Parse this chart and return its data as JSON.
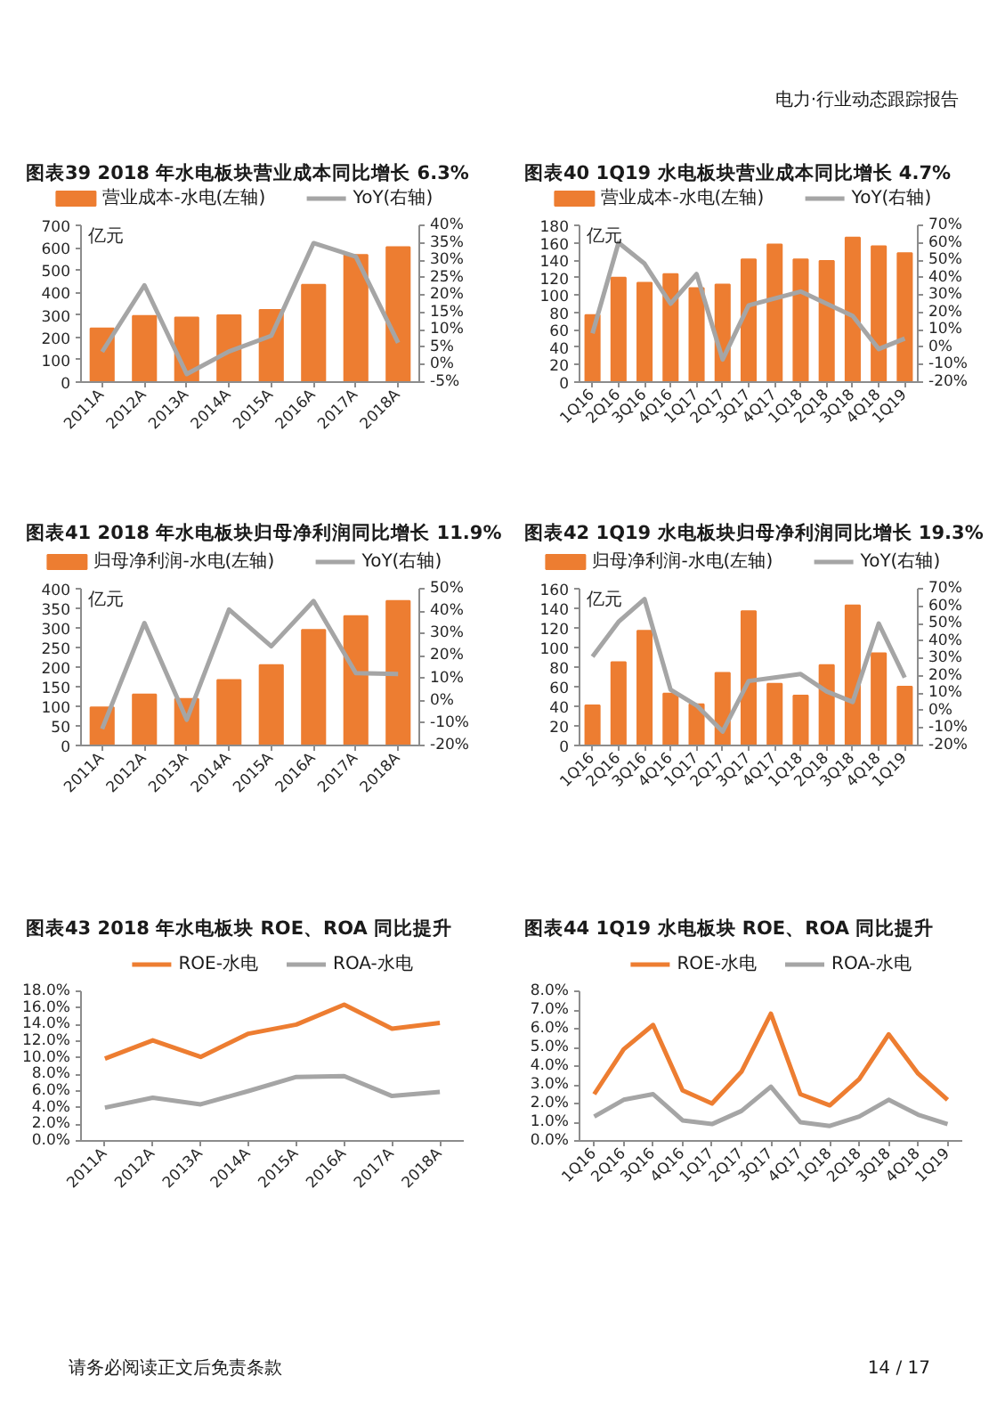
{
  "chart_data": [
    {
      "type": "bar",
      "title": "图表39 2018 年水电板块营业成本同比增长 6.3%",
      "ylabel": "亿元",
      "annotations": [
        "电力·行业动态跟踪报告"
      ],
      "categories": [
        "2011A",
        "2012A",
        "2013A",
        "2014A",
        "2015A",
        "2016A",
        "2017A",
        "2018A"
      ],
      "series": [
        {
          "name": "营业成本-水电(左轴)",
          "color": "#ed7d31",
          "values": [
            240,
            295,
            288,
            298,
            322,
            435,
            568,
            603
          ]
        },
        {
          "name": "YoY(右轴)",
          "type": "line",
          "axis": "y2",
          "color": "#a5a5a5",
          "values": [
            3.7,
            22.8,
            -2.7,
            3.8,
            8.3,
            34.9,
            31.0,
            6.3
          ]
        }
      ],
      "ylim": [
        0,
        700
      ],
      "yticks": [
        0,
        100,
        200,
        300,
        400,
        500,
        600,
        700
      ],
      "y2lim": [
        -5,
        40
      ],
      "y2ticks": [
        {
          "value": -5,
          "label": "-5%"
        },
        {
          "value": 0,
          "label": "0%"
        },
        {
          "value": 5,
          "label": "5%"
        },
        {
          "value": 10,
          "label": "10%"
        },
        {
          "value": 15,
          "label": "15%"
        },
        {
          "value": 20,
          "label": "20%"
        },
        {
          "value": 25,
          "label": "25%"
        },
        {
          "value": 30,
          "label": "30%"
        },
        {
          "value": 35,
          "label": "35%"
        },
        {
          "value": 40,
          "label": "40%"
        }
      ],
      "legend": "top",
      "grid": false
    },
    {
      "type": "bar",
      "title": "图表40 1Q19 水电板块营业成本同比增长 4.7%",
      "ylabel": "亿元",
      "categories": [
        "1Q16",
        "2Q16",
        "3Q16",
        "4Q16",
        "1Q17",
        "2Q17",
        "3Q17",
        "4Q17",
        "1Q18",
        "2Q18",
        "3Q18",
        "4Q18",
        "1Q19"
      ],
      "series": [
        {
          "name": "营业成本-水电(左轴)",
          "color": "#ed7d31",
          "values": [
            77,
            120,
            114,
            124,
            108,
            112,
            141,
            158,
            141,
            139,
            166,
            156,
            148
          ]
        },
        {
          "name": "YoY(右轴)",
          "type": "line",
          "axis": "y2",
          "color": "#a5a5a5",
          "values": [
            8,
            60,
            48,
            25,
            42,
            -7,
            24,
            28,
            32,
            25,
            18,
            -1,
            5
          ]
        }
      ],
      "ylim": [
        0,
        180
      ],
      "yticks": [
        0,
        20,
        40,
        60,
        80,
        100,
        120,
        140,
        160,
        180
      ],
      "y2lim": [
        -20,
        70
      ],
      "y2ticks": [
        {
          "value": -20,
          "label": "-20%"
        },
        {
          "value": -10,
          "label": "-10%"
        },
        {
          "value": 0,
          "label": "0%"
        },
        {
          "value": 10,
          "label": "10%"
        },
        {
          "value": 20,
          "label": "20%"
        },
        {
          "value": 30,
          "label": "30%"
        },
        {
          "value": 40,
          "label": "40%"
        },
        {
          "value": 50,
          "label": "50%"
        },
        {
          "value": 60,
          "label": "60%"
        },
        {
          "value": 70,
          "label": "70%"
        }
      ],
      "legend": "top",
      "grid": false
    },
    {
      "type": "bar",
      "title": "图表41 2018 年水电板块归母净利润同比增长 11.9%",
      "ylabel": "亿元",
      "categories": [
        "2011A",
        "2012A",
        "2013A",
        "2014A",
        "2015A",
        "2016A",
        "2017A",
        "2018A"
      ],
      "series": [
        {
          "name": "归母净利润-水电(左轴)",
          "color": "#ed7d31",
          "values": [
            97,
            130,
            119,
            167,
            205,
            295,
            330,
            369
          ]
        },
        {
          "name": "YoY(右轴)",
          "type": "line",
          "axis": "y2",
          "color": "#a5a5a5",
          "values": [
            -12.6,
            34.7,
            -8.5,
            40.7,
            24.3,
            44.5,
            12.3,
            11.9
          ]
        }
      ],
      "ylim": [
        0,
        400
      ],
      "yticks": [
        0,
        50,
        100,
        150,
        200,
        250,
        300,
        350,
        400
      ],
      "y2lim": [
        -20,
        50
      ],
      "y2ticks": [
        {
          "value": -20,
          "label": "-20%"
        },
        {
          "value": -10,
          "label": "-10%"
        },
        {
          "value": 0,
          "label": "0%"
        },
        {
          "value": 10,
          "label": "10%"
        },
        {
          "value": 20,
          "label": "20%"
        },
        {
          "value": 30,
          "label": "30%"
        },
        {
          "value": 40,
          "label": "40%"
        },
        {
          "value": 50,
          "label": "50%"
        }
      ],
      "legend": "top",
      "grid": false
    },
    {
      "type": "bar",
      "title": "图表42 1Q19 水电板块归母净利润同比增长 19.3%",
      "ylabel": "亿元",
      "categories": [
        "1Q16",
        "2Q16",
        "3Q16",
        "4Q16",
        "1Q17",
        "2Q17",
        "3Q17",
        "4Q17",
        "1Q18",
        "2Q18",
        "3Q18",
        "4Q18",
        "1Q19"
      ],
      "series": [
        {
          "name": "归母净利润-水电(左轴)",
          "color": "#ed7d31",
          "values": [
            41,
            85,
            117,
            53,
            42,
            74,
            137,
            63,
            51,
            82,
            143,
            94,
            60
          ]
        },
        {
          "name": "YoY(右轴)",
          "type": "line",
          "axis": "y2",
          "color": "#a5a5a5",
          "values": [
            31,
            51,
            64,
            12,
            3,
            -12,
            17,
            19,
            21,
            11,
            5,
            50,
            19
          ]
        }
      ],
      "ylim": [
        0,
        160
      ],
      "yticks": [
        0,
        20,
        40,
        60,
        80,
        100,
        120,
        140,
        160
      ],
      "y2lim": [
        -20,
        70
      ],
      "y2ticks": [
        {
          "value": -20,
          "label": "-20%"
        },
        {
          "value": -10,
          "label": "-10%"
        },
        {
          "value": 0,
          "label": "0%"
        },
        {
          "value": 10,
          "label": "10%"
        },
        {
          "value": 20,
          "label": "20%"
        },
        {
          "value": 30,
          "label": "30%"
        },
        {
          "value": 40,
          "label": "40%"
        },
        {
          "value": 50,
          "label": "50%"
        },
        {
          "value": 60,
          "label": "60%"
        },
        {
          "value": 70,
          "label": "70%"
        }
      ],
      "legend": "top",
      "grid": false
    },
    {
      "type": "line",
      "title": "图表43 2018 年水电板块 ROE、ROA 同比提升",
      "categories": [
        "2011A",
        "2012A",
        "2013A",
        "2014A",
        "2015A",
        "2016A",
        "2017A",
        "2018A"
      ],
      "series": [
        {
          "name": "ROE-水电",
          "color": "#ed7d31",
          "values": [
            9.9,
            12.1,
            10.1,
            12.9,
            14.0,
            16.4,
            13.5,
            14.2
          ]
        },
        {
          "name": "ROA-水电",
          "color": "#a5a5a5",
          "values": [
            4.0,
            5.2,
            4.4,
            6.0,
            7.7,
            7.8,
            5.4,
            5.9
          ]
        }
      ],
      "ylim": [
        0,
        18
      ],
      "yticks": [
        {
          "value": 0,
          "label": "0.0%"
        },
        {
          "value": 2,
          "label": "2.0%"
        },
        {
          "value": 4,
          "label": "4.0%"
        },
        {
          "value": 6,
          "label": "6.0%"
        },
        {
          "value": 8,
          "label": "8.0%"
        },
        {
          "value": 10,
          "label": "10.0%"
        },
        {
          "value": 12,
          "label": "12.0%"
        },
        {
          "value": 14,
          "label": "14.0%"
        },
        {
          "value": 16,
          "label": "16.0%"
        },
        {
          "value": 18,
          "label": "18.0%"
        }
      ],
      "legend": "top",
      "grid": false
    },
    {
      "type": "line",
      "title": "图表44 1Q19 水电板块 ROE、ROA 同比提升",
      "annotations": [
        "请务必阅读正文后免责条款",
        "14 / 17"
      ],
      "categories": [
        "1Q16",
        "2Q16",
        "3Q16",
        "4Q16",
        "1Q17",
        "2Q17",
        "3Q17",
        "4Q17",
        "1Q18",
        "2Q18",
        "3Q18",
        "4Q18",
        "1Q19"
      ],
      "series": [
        {
          "name": "ROE-水电",
          "color": "#ed7d31",
          "values": [
            2.5,
            4.9,
            6.2,
            2.7,
            2.0,
            3.7,
            6.8,
            2.5,
            1.9,
            3.3,
            5.7,
            3.6,
            2.2
          ]
        },
        {
          "name": "ROA-水电",
          "color": "#a5a5a5",
          "values": [
            1.3,
            2.2,
            2.5,
            1.1,
            0.9,
            1.6,
            2.9,
            1.0,
            0.8,
            1.3,
            2.2,
            1.4,
            0.9
          ]
        }
      ],
      "ylim": [
        0,
        8
      ],
      "yticks": [
        {
          "value": 0,
          "label": "0.0%"
        },
        {
          "value": 1,
          "label": "1.0%"
        },
        {
          "value": 2,
          "label": "2.0%"
        },
        {
          "value": 3,
          "label": "3.0%"
        },
        {
          "value": 4,
          "label": "4.0%"
        },
        {
          "value": 5,
          "label": "5.0%"
        },
        {
          "value": 6,
          "label": "6.0%"
        },
        {
          "value": 7,
          "label": "7.0%"
        },
        {
          "value": 8,
          "label": "8.0%"
        }
      ],
      "legend": "top",
      "grid": false
    }
  ]
}
